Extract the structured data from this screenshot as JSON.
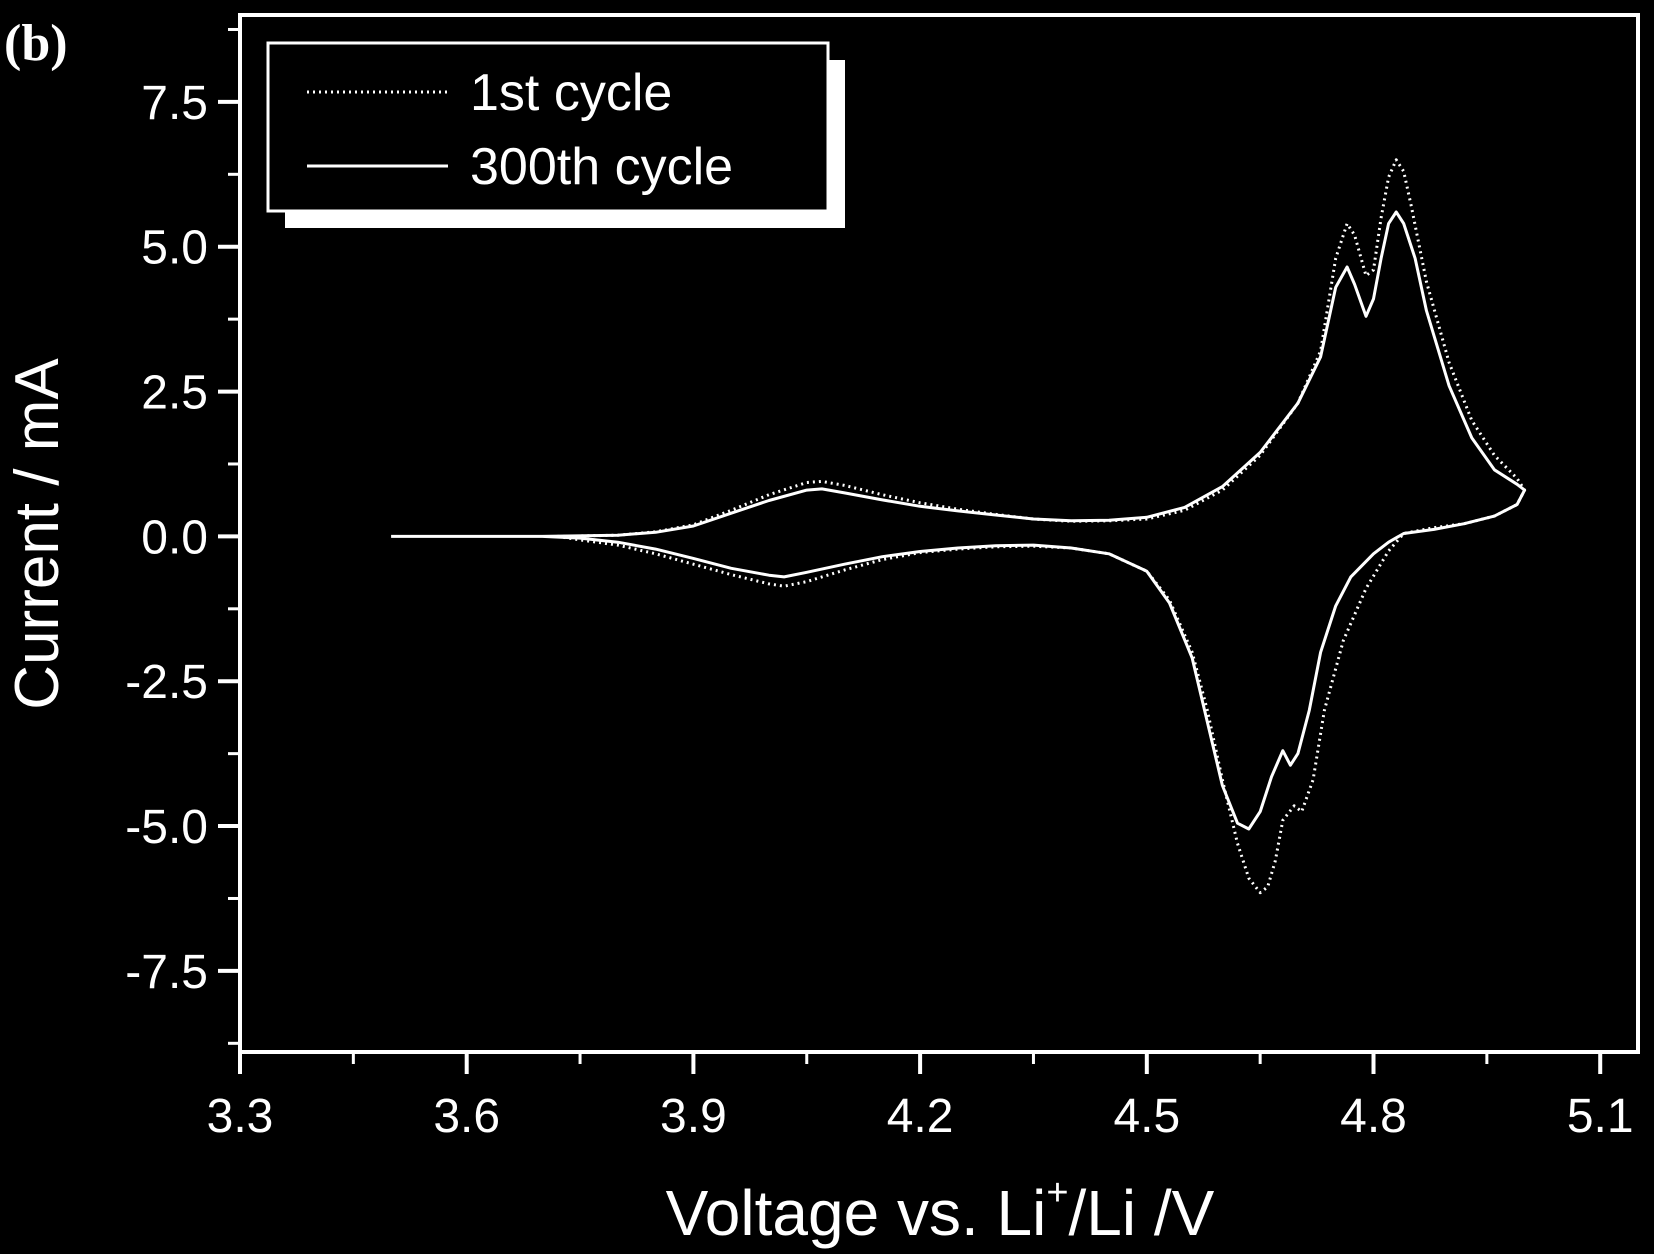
{
  "chart_data": {
    "type": "line",
    "panel_label": "(b)",
    "xlabel": {
      "prefix": "Voltage vs. Li",
      "superscript": "+",
      "suffix": "/Li /V"
    },
    "ylabel": "Current / mA",
    "xlim": [
      3.3,
      5.15
    ],
    "ylim": [
      -8.9,
      9.0
    ],
    "x_major_ticks": [
      3.3,
      3.6,
      3.9,
      4.2,
      4.5,
      4.8,
      5.1
    ],
    "x_tick_labels": [
      "3.3",
      "3.6",
      "3.9",
      "4.2",
      "4.5",
      "4.8",
      "5.1"
    ],
    "x_minor_ticks": [
      3.45,
      3.75,
      4.05,
      4.35,
      4.65,
      4.95
    ],
    "y_major_ticks": [
      7.5,
      5.0,
      2.5,
      0.0,
      -2.5,
      -5.0,
      -7.5
    ],
    "y_tick_labels": [
      "7.5",
      "5.0",
      "2.5",
      "0.0",
      "-2.5",
      "-5.0",
      "-7.5"
    ],
    "y_minor_ticks": [
      8.75,
      6.25,
      3.75,
      1.25,
      -1.25,
      -3.75,
      -6.25,
      -8.75
    ],
    "colors": {
      "background": "#000000",
      "foreground": "#ffffff"
    },
    "series": [
      {
        "name": "1st cycle",
        "style": "dotted",
        "points": [
          [
            3.72,
            0.0
          ],
          [
            3.8,
            0.02
          ],
          [
            3.85,
            0.08
          ],
          [
            3.9,
            0.2
          ],
          [
            3.95,
            0.45
          ],
          [
            4.0,
            0.72
          ],
          [
            4.05,
            0.93
          ],
          [
            4.07,
            0.95
          ],
          [
            4.1,
            0.88
          ],
          [
            4.15,
            0.72
          ],
          [
            4.2,
            0.58
          ],
          [
            4.25,
            0.47
          ],
          [
            4.3,
            0.38
          ],
          [
            4.35,
            0.3
          ],
          [
            4.4,
            0.26
          ],
          [
            4.45,
            0.27
          ],
          [
            4.5,
            0.3
          ],
          [
            4.55,
            0.45
          ],
          [
            4.6,
            0.8
          ],
          [
            4.65,
            1.4
          ],
          [
            4.7,
            2.3
          ],
          [
            4.73,
            3.2
          ],
          [
            4.75,
            4.8
          ],
          [
            4.765,
            5.4
          ],
          [
            4.775,
            5.2
          ],
          [
            4.79,
            4.5
          ],
          [
            4.8,
            4.6
          ],
          [
            4.81,
            5.5
          ],
          [
            4.82,
            6.2
          ],
          [
            4.83,
            6.5
          ],
          [
            4.84,
            6.3
          ],
          [
            4.85,
            5.7
          ],
          [
            4.87,
            4.4
          ],
          [
            4.9,
            3.0
          ],
          [
            4.93,
            2.0
          ],
          [
            4.96,
            1.4
          ],
          [
            4.99,
            1.0
          ],
          [
            5.0,
            0.8
          ],
          [
            4.99,
            0.55
          ],
          [
            4.96,
            0.35
          ],
          [
            4.92,
            0.22
          ],
          [
            4.88,
            0.15
          ],
          [
            4.84,
            0.05
          ],
          [
            4.82,
            -0.25
          ],
          [
            4.79,
            -0.9
          ],
          [
            4.76,
            -1.8
          ],
          [
            4.735,
            -3.0
          ],
          [
            4.72,
            -4.2
          ],
          [
            4.705,
            -4.75
          ],
          [
            4.695,
            -4.65
          ],
          [
            4.68,
            -4.9
          ],
          [
            4.67,
            -5.6
          ],
          [
            4.66,
            -6.05
          ],
          [
            4.65,
            -6.15
          ],
          [
            4.635,
            -5.9
          ],
          [
            4.62,
            -5.3
          ],
          [
            4.6,
            -4.2
          ],
          [
            4.58,
            -3.0
          ],
          [
            4.56,
            -2.0
          ],
          [
            4.53,
            -1.1
          ],
          [
            4.5,
            -0.6
          ],
          [
            4.45,
            -0.3
          ],
          [
            4.4,
            -0.2
          ],
          [
            4.35,
            -0.17
          ],
          [
            4.3,
            -0.18
          ],
          [
            4.25,
            -0.22
          ],
          [
            4.2,
            -0.28
          ],
          [
            4.15,
            -0.4
          ],
          [
            4.1,
            -0.58
          ],
          [
            4.05,
            -0.78
          ],
          [
            4.02,
            -0.86
          ],
          [
            4.0,
            -0.82
          ],
          [
            3.95,
            -0.66
          ],
          [
            3.9,
            -0.48
          ],
          [
            3.85,
            -0.3
          ],
          [
            3.8,
            -0.15
          ],
          [
            3.75,
            -0.06
          ],
          [
            3.72,
            0.0
          ]
        ]
      },
      {
        "name": "300th cycle",
        "style": "solid",
        "points": [
          [
            3.5,
            0.0
          ],
          [
            3.7,
            0.0
          ],
          [
            3.8,
            0.02
          ],
          [
            3.85,
            0.07
          ],
          [
            3.9,
            0.18
          ],
          [
            3.95,
            0.4
          ],
          [
            4.0,
            0.62
          ],
          [
            4.05,
            0.8
          ],
          [
            4.07,
            0.82
          ],
          [
            4.1,
            0.75
          ],
          [
            4.15,
            0.63
          ],
          [
            4.2,
            0.52
          ],
          [
            4.25,
            0.44
          ],
          [
            4.3,
            0.37
          ],
          [
            4.35,
            0.3
          ],
          [
            4.4,
            0.27
          ],
          [
            4.45,
            0.28
          ],
          [
            4.5,
            0.33
          ],
          [
            4.55,
            0.5
          ],
          [
            4.6,
            0.86
          ],
          [
            4.65,
            1.45
          ],
          [
            4.7,
            2.3
          ],
          [
            4.73,
            3.1
          ],
          [
            4.75,
            4.3
          ],
          [
            4.765,
            4.65
          ],
          [
            4.775,
            4.35
          ],
          [
            4.79,
            3.8
          ],
          [
            4.8,
            4.1
          ],
          [
            4.81,
            4.8
          ],
          [
            4.82,
            5.4
          ],
          [
            4.83,
            5.6
          ],
          [
            4.84,
            5.4
          ],
          [
            4.855,
            4.8
          ],
          [
            4.87,
            3.9
          ],
          [
            4.9,
            2.6
          ],
          [
            4.93,
            1.7
          ],
          [
            4.96,
            1.15
          ],
          [
            4.99,
            0.9
          ],
          [
            5.0,
            0.8
          ],
          [
            4.99,
            0.55
          ],
          [
            4.96,
            0.35
          ],
          [
            4.92,
            0.22
          ],
          [
            4.88,
            0.12
          ],
          [
            4.84,
            0.05
          ],
          [
            4.82,
            -0.1
          ],
          [
            4.8,
            -0.3
          ],
          [
            4.77,
            -0.7
          ],
          [
            4.75,
            -1.2
          ],
          [
            4.73,
            -2.0
          ],
          [
            4.715,
            -3.0
          ],
          [
            4.7,
            -3.75
          ],
          [
            4.69,
            -3.95
          ],
          [
            4.68,
            -3.7
          ],
          [
            4.665,
            -4.15
          ],
          [
            4.65,
            -4.75
          ],
          [
            4.635,
            -5.05
          ],
          [
            4.62,
            -4.95
          ],
          [
            4.6,
            -4.3
          ],
          [
            4.58,
            -3.2
          ],
          [
            4.56,
            -2.1
          ],
          [
            4.53,
            -1.15
          ],
          [
            4.5,
            -0.6
          ],
          [
            4.45,
            -0.3
          ],
          [
            4.4,
            -0.2
          ],
          [
            4.35,
            -0.15
          ],
          [
            4.3,
            -0.16
          ],
          [
            4.25,
            -0.2
          ],
          [
            4.2,
            -0.26
          ],
          [
            4.15,
            -0.35
          ],
          [
            4.1,
            -0.48
          ],
          [
            4.05,
            -0.62
          ],
          [
            4.02,
            -0.7
          ],
          [
            4.0,
            -0.67
          ],
          [
            3.95,
            -0.55
          ],
          [
            3.9,
            -0.38
          ],
          [
            3.85,
            -0.22
          ],
          [
            3.8,
            -0.1
          ],
          [
            3.75,
            -0.03
          ],
          [
            3.7,
            0.0
          ]
        ]
      }
    ]
  }
}
